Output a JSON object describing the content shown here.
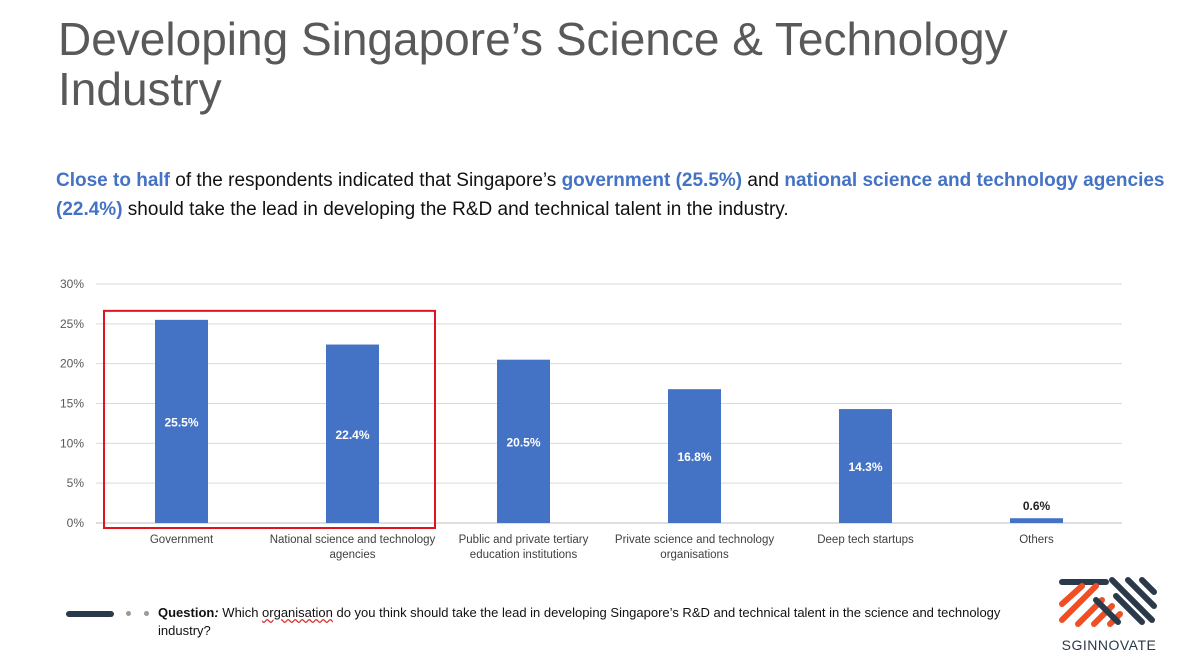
{
  "slide": {
    "title": "Developing Singapore’s Science & Technology Industry",
    "subtitle": {
      "p1": "Close to half",
      "p2": " of the respondents indicated that Singapore’s ",
      "p3": "government (25.5%)",
      "p4": " and ",
      "p5": "national science and technology agencies (22.4%)",
      "p6": " should take the lead in developing the R&D and technical talent in the industry."
    },
    "footer": {
      "label": "Question",
      "colon": ":",
      "t1": " Which ",
      "t2": "organisation",
      "t3": " do you think should take the lead in developing Singapore’s R&D and technical talent in the science and technology industry?"
    },
    "logo_text": "SGINNOVATE"
  },
  "colors": {
    "bar": "#4472c4",
    "highlight_box": "#e0141e",
    "accent": "#4472c4",
    "logo_orange": "#f04e23",
    "logo_dark": "#2b3a4a"
  },
  "chart_data": {
    "type": "bar",
    "categories": [
      [
        "Government"
      ],
      [
        "National science and technology",
        "agencies"
      ],
      [
        "Public and private tertiary",
        "education institutions"
      ],
      [
        "Private science and technology",
        "organisations"
      ],
      [
        "Deep tech startups"
      ],
      [
        "Others"
      ]
    ],
    "values": [
      25.5,
      22.4,
      20.5,
      16.8,
      14.3,
      0.6
    ],
    "data_labels": [
      "25.5%",
      "22.4%",
      "20.5%",
      "16.8%",
      "14.3%",
      "0.6%"
    ],
    "y_ticks": [
      "0%",
      "5%",
      "10%",
      "15%",
      "20%",
      "25%",
      "30%"
    ],
    "ylim": [
      0,
      30
    ],
    "grid": true,
    "highlighted_categories": [
      0,
      1
    ]
  }
}
